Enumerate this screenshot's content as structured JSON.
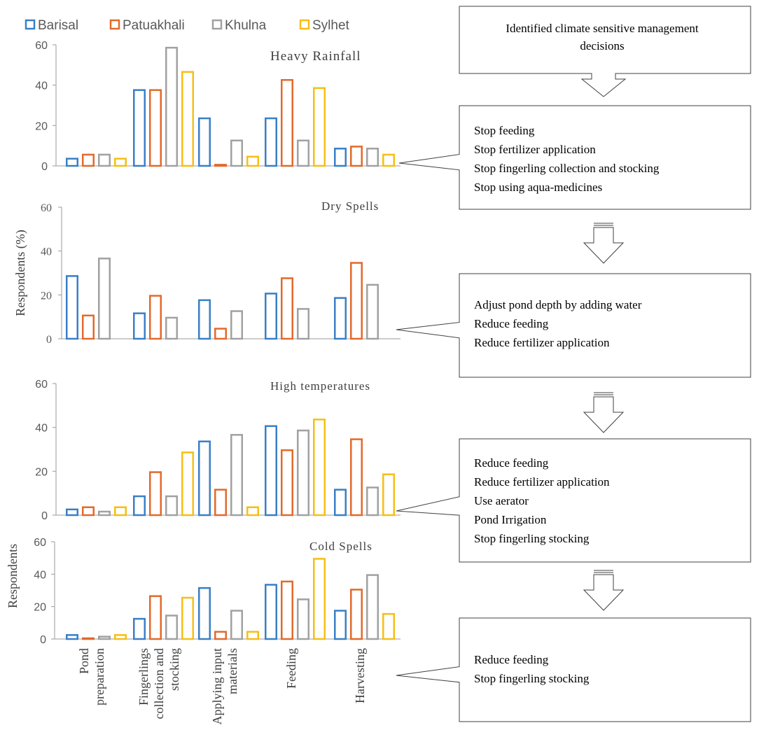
{
  "legend": [
    {
      "name": "Barisal",
      "color": "#3a7fc6"
    },
    {
      "name": "Patuakhali",
      "color": "#e26a2c"
    },
    {
      "name": "Khulna",
      "color": "#a1a1a1"
    },
    {
      "name": "Sylhet",
      "color": "#f5bf14"
    }
  ],
  "y_axis_label_dry": "Respondents (%)",
  "y_axis_label_cold": "Respondents",
  "categories": [
    "Pond preparation",
    "Fingerlings collection and stocking",
    "Applying input materials",
    "Feeding",
    "Harvesting"
  ],
  "chart_data": [
    {
      "type": "bar",
      "title": "Heavy Rainfall",
      "categories": [
        "Pond preparation",
        "Fingerlings collection and stocking",
        "Applying input materials",
        "Feeding",
        "Harvesting"
      ],
      "ylim": [
        0,
        60
      ],
      "yticks": [
        "0",
        "20",
        "40",
        "60"
      ],
      "series": [
        {
          "name": "Barisal",
          "values": [
            4,
            38,
            24,
            24,
            9
          ]
        },
        {
          "name": "Patuakhali",
          "values": [
            6,
            38,
            1,
            43,
            10
          ]
        },
        {
          "name": "Khulna",
          "values": [
            6,
            59,
            13,
            13,
            9
          ]
        },
        {
          "name": "Sylhet",
          "values": [
            4,
            47,
            5,
            39,
            6
          ]
        }
      ]
    },
    {
      "type": "bar",
      "title": "Dry Spells",
      "categories": [
        "Pond preparation",
        "Fingerlings collection and stocking",
        "Applying input materials",
        "Feeding",
        "Harvesting"
      ],
      "ylim": [
        0,
        60
      ],
      "yticks": [
        "0",
        "20",
        "40",
        "60"
      ],
      "ylabel": "Respondents (%)",
      "series": [
        {
          "name": "Barisal",
          "values": [
            29,
            12,
            18,
            21,
            19
          ]
        },
        {
          "name": "Patuakhali",
          "values": [
            11,
            20,
            5,
            28,
            35
          ]
        },
        {
          "name": "Khulna",
          "values": [
            37,
            10,
            13,
            14,
            25
          ]
        }
      ]
    },
    {
      "type": "bar",
      "title": "High temperatures",
      "categories": [
        "Pond preparation",
        "Fingerlings collection and stocking",
        "Applying input materials",
        "Feeding",
        "Harvesting"
      ],
      "ylim": [
        0,
        60
      ],
      "yticks": [
        "0",
        "20",
        "40",
        "60"
      ],
      "series": [
        {
          "name": "Barisal",
          "values": [
            3,
            9,
            34,
            41,
            12
          ]
        },
        {
          "name": "Patuakhali",
          "values": [
            4,
            20,
            12,
            30,
            35
          ]
        },
        {
          "name": "Khulna",
          "values": [
            2,
            9,
            37,
            39,
            13
          ]
        },
        {
          "name": "Sylhet",
          "values": [
            4,
            29,
            4,
            44,
            19
          ]
        }
      ]
    },
    {
      "type": "bar",
      "title": "Cold Spells",
      "categories": [
        "Pond preparation",
        "Fingerlings collection and stocking",
        "Applying input materials",
        "Feeding",
        "Harvesting"
      ],
      "ylim": [
        0,
        60
      ],
      "yticks": [
        "0",
        "20",
        "40",
        "60"
      ],
      "ylabel": "Respondents",
      "series": [
        {
          "name": "Barisal",
          "values": [
            3,
            13,
            32,
            34,
            18
          ]
        },
        {
          "name": "Patuakhali",
          "values": [
            1,
            27,
            5,
            36,
            31
          ]
        },
        {
          "name": "Khulna",
          "values": [
            2,
            15,
            18,
            25,
            40
          ]
        },
        {
          "name": "Sylhet",
          "values": [
            3,
            26,
            5,
            50,
            16
          ]
        }
      ]
    }
  ],
  "flow": {
    "top_box": [
      "Identified climate sensitive management",
      "decisions"
    ],
    "boxes": [
      [
        "Stop feeding",
        "Stop fertilizer application",
        "Stop fingerling collection and stocking",
        "Stop using aqua-medicines"
      ],
      [
        "Adjust pond depth by adding water",
        "Reduce feeding",
        "Reduce fertilizer application"
      ],
      [
        "Reduce feeding",
        "Reduce fertilizer application",
        "Use aerator",
        "Pond Irrigation",
        "Stop fingerling stocking"
      ],
      [
        "Reduce feeding",
        "Stop fingerling stocking"
      ]
    ]
  }
}
